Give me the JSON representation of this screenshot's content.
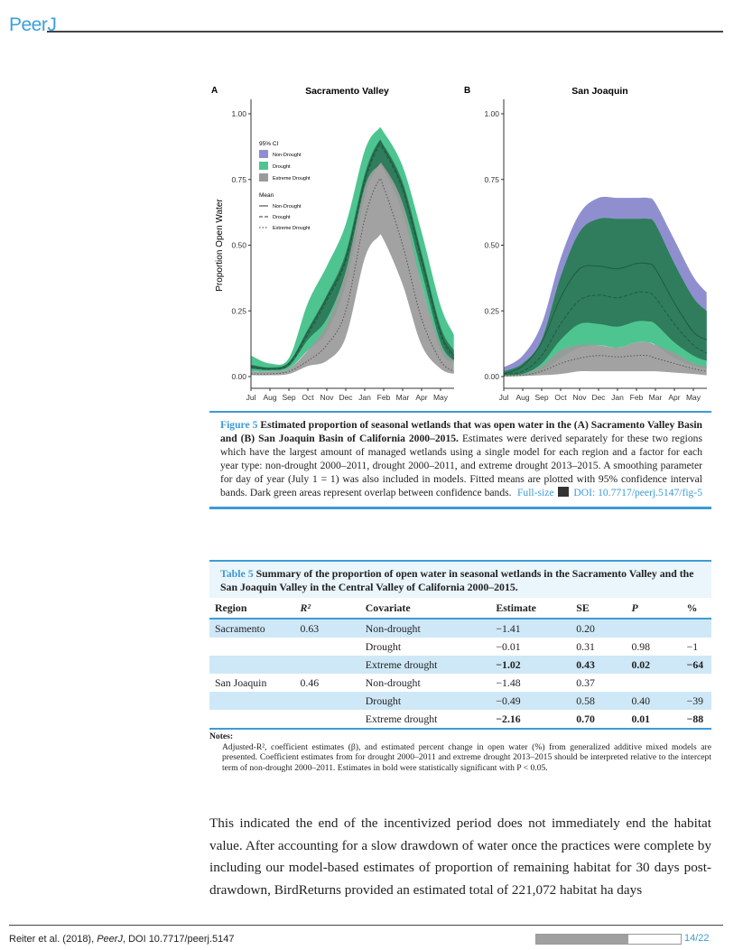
{
  "header": {
    "logo": "PeerJ"
  },
  "figure": {
    "legend": {
      "ci_title": "95% CI",
      "mean_title": "Mean",
      "items": [
        "Non-Drought",
        "Drought",
        "Extreme Drought"
      ]
    },
    "colors": {
      "non_drought": "#8f8fd0",
      "drought": "#4ec591",
      "overlap": "#2f7d5c",
      "extreme": "#9a9a9a"
    }
  },
  "chart_data": [
    {
      "type": "area",
      "panel": "A",
      "title": "Sacramento Valley",
      "ylabel": "Proportion Open Water",
      "xlabel": "",
      "x_ticks": [
        "Jul",
        "Aug",
        "Sep",
        "Oct",
        "Nov",
        "Dec",
        "Jan",
        "Feb",
        "Mar",
        "Apr",
        "May"
      ],
      "y_ticks": [
        "0.00",
        "0.25",
        "0.50",
        "0.75",
        "1.00"
      ],
      "ylim": [
        0,
        1
      ],
      "x": [
        0,
        1,
        2,
        3,
        4,
        5,
        6,
        6.7,
        7,
        8,
        9,
        10,
        10.7
      ],
      "series": [
        {
          "name": "Non-Drought",
          "mean": [
            0.04,
            0.03,
            0.05,
            0.17,
            0.3,
            0.45,
            0.75,
            0.88,
            0.87,
            0.72,
            0.45,
            0.17,
            0.08
          ],
          "lower": [
            0.03,
            0.025,
            0.04,
            0.14,
            0.22,
            0.4,
            0.72,
            0.8,
            0.79,
            0.66,
            0.4,
            0.13,
            0.06
          ],
          "upper": [
            0.045,
            0.035,
            0.055,
            0.18,
            0.31,
            0.47,
            0.77,
            0.89,
            0.88,
            0.74,
            0.47,
            0.19,
            0.1
          ]
        },
        {
          "name": "Drought",
          "mean": [
            0.035,
            0.028,
            0.045,
            0.16,
            0.29,
            0.44,
            0.74,
            0.87,
            0.86,
            0.71,
            0.44,
            0.16,
            0.07
          ],
          "lower": [
            0.02,
            0.02,
            0.03,
            0.1,
            0.17,
            0.35,
            0.68,
            0.8,
            0.79,
            0.62,
            0.35,
            0.1,
            0.05
          ],
          "upper": [
            0.08,
            0.05,
            0.07,
            0.28,
            0.42,
            0.58,
            0.86,
            0.94,
            0.93,
            0.8,
            0.55,
            0.27,
            0.16
          ]
        },
        {
          "name": "Extreme Drought",
          "mean": [
            0.01,
            0.01,
            0.02,
            0.06,
            0.12,
            0.25,
            0.6,
            0.74,
            0.72,
            0.5,
            0.22,
            0.06,
            0.02
          ],
          "lower": [
            0.005,
            0.005,
            0.01,
            0.04,
            0.06,
            0.15,
            0.45,
            0.53,
            0.52,
            0.35,
            0.12,
            0.03,
            0.01
          ],
          "upper": [
            0.02,
            0.02,
            0.03,
            0.1,
            0.2,
            0.4,
            0.72,
            0.8,
            0.8,
            0.66,
            0.35,
            0.12,
            0.06
          ]
        }
      ]
    },
    {
      "type": "area",
      "panel": "B",
      "title": "San Joaquin",
      "ylabel": "",
      "xlabel": "",
      "x_ticks": [
        "Jul",
        "Aug",
        "Sep",
        "Oct",
        "Nov",
        "Dec",
        "Jan",
        "Feb",
        "Mar",
        "Apr",
        "May"
      ],
      "y_ticks": [
        "0.00",
        "0.25",
        "0.50",
        "0.75",
        "1.00"
      ],
      "ylim": [
        0,
        1
      ],
      "x": [
        0,
        1,
        2,
        3,
        4,
        5,
        6,
        7,
        7.6,
        8,
        9,
        10,
        10.7
      ],
      "series": [
        {
          "name": "Non-Drought",
          "mean": [
            0.01,
            0.04,
            0.13,
            0.3,
            0.41,
            0.42,
            0.41,
            0.43,
            0.43,
            0.41,
            0.28,
            0.17,
            0.14
          ],
          "lower": [
            0.005,
            0.01,
            0.05,
            0.14,
            0.2,
            0.2,
            0.19,
            0.21,
            0.21,
            0.2,
            0.13,
            0.08,
            0.06
          ],
          "upper": [
            0.035,
            0.08,
            0.2,
            0.45,
            0.62,
            0.68,
            0.68,
            0.68,
            0.68,
            0.66,
            0.52,
            0.38,
            0.32
          ]
        },
        {
          "name": "Drought",
          "mean": [
            0.01,
            0.02,
            0.08,
            0.2,
            0.29,
            0.31,
            0.3,
            0.32,
            0.32,
            0.3,
            0.2,
            0.12,
            0.09
          ],
          "lower": [
            0.003,
            0.005,
            0.02,
            0.07,
            0.11,
            0.12,
            0.11,
            0.13,
            0.13,
            0.12,
            0.07,
            0.04,
            0.03
          ],
          "upper": [
            0.02,
            0.05,
            0.14,
            0.38,
            0.55,
            0.6,
            0.6,
            0.6,
            0.6,
            0.58,
            0.43,
            0.3,
            0.25
          ]
        },
        {
          "name": "Extreme Drought",
          "mean": [
            0.002,
            0.005,
            0.02,
            0.05,
            0.07,
            0.08,
            0.075,
            0.08,
            0.08,
            0.07,
            0.05,
            0.03,
            0.02
          ],
          "lower": [
            0,
            0.002,
            0.005,
            0.01,
            0.02,
            0.02,
            0.02,
            0.02,
            0.02,
            0.02,
            0.015,
            0.01,
            0.005
          ],
          "upper": [
            0.005,
            0.01,
            0.04,
            0.1,
            0.12,
            0.12,
            0.11,
            0.13,
            0.13,
            0.12,
            0.09,
            0.05,
            0.04
          ]
        }
      ]
    }
  ],
  "caption": {
    "label": "Figure 5",
    "title": "Estimated proportion of seasonal wetlands that was open water in the (A) Sacramento Valley Basin and (B) San Joaquin Basin of California 2000–2015.",
    "text": "Estimates were derived separately for these two regions which have the largest amount of managed wetlands using a single model for each region and a factor for each year type: non-drought 2000–2011, drought 2000–2011, and extreme drought 2013–2015. A smoothing parameter for day of year (July 1 = 1) was also included in models. Fitted means are plotted with 95% confidence interval bands. Dark green areas represent overlap between confidence bands.",
    "fullsize": "Full-size",
    "doi": "DOI: 10.7717/peerj.5147/fig-5"
  },
  "table": {
    "label": "Table 5",
    "title": "Summary of the proportion of open water in seasonal wetlands in the Sacramento Valley and the San Joaquin Valley in the Central Valley of California 2000–2015.",
    "headers": [
      "Region",
      "R²",
      "Covariate",
      "Estimate",
      "SE",
      "P",
      "%"
    ],
    "rows": [
      [
        "Sacramento",
        "0.63",
        "Non-drought",
        "−1.41",
        "0.20",
        "",
        ""
      ],
      [
        "",
        "",
        "Drought",
        "−0.01",
        "0.31",
        "0.98",
        "−1"
      ],
      [
        "",
        "",
        "Extreme drought",
        "−1.02",
        "0.43",
        "0.02",
        "−64"
      ],
      [
        "San Joaquin",
        "0.46",
        "Non-drought",
        "−1.48",
        "0.37",
        "",
        ""
      ],
      [
        "",
        "",
        "Drought",
        "−0.49",
        "0.58",
        "0.40",
        "−39"
      ],
      [
        "",
        "",
        "Extreme drought",
        "−2.16",
        "0.70",
        "0.01",
        "−88"
      ]
    ],
    "notes_title": "Notes:",
    "notes": "Adjusted-R², coefficient estimates (β), and estimated percent change in open water (%) from generalized additive mixed models are presented. Coefficient estimates from for drought 2000–2011 and extreme drought 2013–2015 should be interpreted relative to the intercept term of non-drought 2000–2011. Estimates in bold were statistically significant with P < 0.05."
  },
  "body": "This indicated the end of the incentivized period does not immediately end the habitat value. After accounting for a slow drawdown of water once the practices were complete by including our model-based estimates of proportion of remaining habitat for 30 days post-drawdown, BirdReturns provided an estimated total of 221,072 habitat ha days",
  "footer": {
    "citation_pre": "Reiter et al. (2018), ",
    "journal": "PeerJ",
    "citation_post": ", DOI 10.7717/peerj.5147",
    "page": "14/22",
    "progress": 0.636
  }
}
